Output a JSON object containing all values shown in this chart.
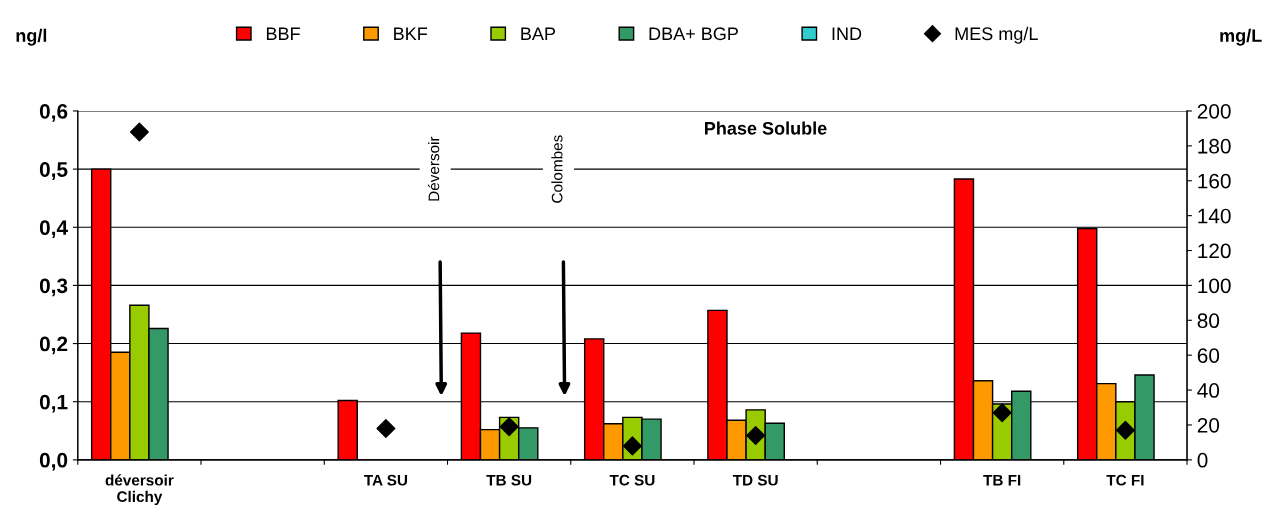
{
  "chart_data": {
    "type": "bar",
    "title": "Phase Soluble",
    "ylabel": "ng/l",
    "y2label": "mg/L",
    "categories": [
      "déversoir\nClichy",
      null,
      "TA SU",
      "TB SU",
      "TC SU",
      "TD SU",
      null,
      "TB FI",
      "TC FI"
    ],
    "series": [
      {
        "name": "BBF",
        "color": "#ff0000",
        "values": [
          0.5,
          null,
          0.102,
          0.218,
          0.208,
          0.257,
          null,
          0.483,
          0.398
        ]
      },
      {
        "name": "BKF",
        "color": "#ff9900",
        "values": [
          0.185,
          null,
          null,
          0.052,
          0.062,
          0.068,
          null,
          0.136,
          0.131
        ]
      },
      {
        "name": "BAP",
        "color": "#99cc00",
        "values": [
          0.266,
          null,
          null,
          0.073,
          0.073,
          0.086,
          null,
          0.096,
          0.1
        ]
      },
      {
        "name": "DBA+ BGP",
        "color": "#339966",
        "values": [
          0.226,
          null,
          null,
          0.055,
          0.07,
          0.063,
          null,
          0.118,
          0.146
        ]
      },
      {
        "name": "IND",
        "color": "#33cccc",
        "values": [
          null,
          null,
          null,
          null,
          null,
          null,
          null,
          null,
          null
        ]
      },
      {
        "name": "MES mg/L",
        "type": "scatter",
        "axis": "y2",
        "color": "#000000",
        "marker": "diamond",
        "values": [
          188,
          null,
          18,
          19,
          8,
          14,
          null,
          27,
          17
        ]
      }
    ],
    "ylim": [
      0,
      0.6
    ],
    "yticks": [
      {
        "value": 0,
        "label": "0,0"
      },
      {
        "value": 0.1,
        "label": "0,1"
      },
      {
        "value": 0.2,
        "label": "0,2"
      },
      {
        "value": 0.3,
        "label": "0,3"
      },
      {
        "value": 0.4,
        "label": "0,4"
      },
      {
        "value": 0.5,
        "label": "0,5"
      },
      {
        "value": 0.6,
        "label": "0,6"
      }
    ],
    "y2lim": [
      0,
      200
    ],
    "y2ticks": [
      0,
      20,
      40,
      60,
      80,
      100,
      120,
      140,
      160,
      180,
      200
    ],
    "grid": "y",
    "legend": "top",
    "annotations": [
      "Déversoir",
      "Colombes"
    ]
  }
}
